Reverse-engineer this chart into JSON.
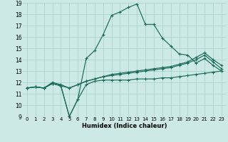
{
  "xlabel": "Humidex (Indice chaleur)",
  "xlim": [
    -0.5,
    23.5
  ],
  "ylim": [
    9,
    19
  ],
  "xticks": [
    0,
    1,
    2,
    3,
    4,
    5,
    6,
    7,
    8,
    9,
    10,
    11,
    12,
    13,
    14,
    15,
    16,
    17,
    18,
    19,
    20,
    21,
    22,
    23
  ],
  "yticks": [
    9,
    10,
    11,
    12,
    13,
    14,
    15,
    16,
    17,
    18,
    19
  ],
  "bg_color": "#cce9e5",
  "grid_color": "#aad4cf",
  "line_color": "#1a6b5a",
  "series": [
    {
      "x": [
        0,
        1,
        2,
        3,
        4,
        5,
        6,
        7,
        8,
        9,
        10,
        11,
        12,
        13,
        14,
        15,
        16,
        17,
        18,
        19,
        20,
        21,
        22,
        23
      ],
      "y": [
        11.5,
        11.6,
        11.5,
        11.9,
        11.7,
        9.0,
        10.5,
        11.8,
        12.1,
        12.2,
        12.2,
        12.2,
        12.2,
        12.3,
        12.3,
        12.3,
        12.4,
        12.4,
        12.5,
        12.6,
        12.7,
        12.8,
        12.9,
        13.0
      ]
    },
    {
      "x": [
        0,
        1,
        2,
        3,
        4,
        5,
        6,
        7,
        8,
        9,
        10,
        11,
        12,
        13,
        14,
        15,
        16,
        17,
        18,
        19,
        20,
        21,
        22,
        23
      ],
      "y": [
        11.5,
        11.6,
        11.5,
        11.9,
        11.7,
        9.0,
        10.5,
        14.1,
        14.8,
        16.2,
        17.9,
        18.2,
        18.6,
        18.9,
        17.1,
        17.1,
        15.9,
        15.2,
        14.5,
        14.4,
        13.7,
        14.1,
        13.5,
        13.0
      ]
    },
    {
      "x": [
        0,
        1,
        2,
        3,
        4,
        5,
        6,
        7,
        8,
        9,
        10,
        11,
        12,
        13,
        14,
        15,
        16,
        17,
        18,
        19,
        20,
        21,
        22,
        23
      ],
      "y": [
        11.5,
        11.6,
        11.5,
        12.0,
        11.8,
        11.5,
        11.8,
        12.1,
        12.3,
        12.5,
        12.6,
        12.7,
        12.8,
        12.9,
        13.0,
        13.1,
        13.2,
        13.3,
        13.5,
        13.7,
        14.0,
        14.4,
        13.8,
        13.2
      ]
    },
    {
      "x": [
        0,
        1,
        2,
        3,
        4,
        5,
        6,
        7,
        8,
        9,
        10,
        11,
        12,
        13,
        14,
        15,
        16,
        17,
        18,
        19,
        20,
        21,
        22,
        23
      ],
      "y": [
        11.5,
        11.6,
        11.5,
        11.9,
        11.7,
        11.5,
        11.8,
        12.1,
        12.3,
        12.5,
        12.7,
        12.8,
        12.9,
        13.0,
        13.1,
        13.2,
        13.3,
        13.4,
        13.6,
        13.8,
        14.2,
        14.6,
        14.0,
        13.5
      ]
    }
  ]
}
